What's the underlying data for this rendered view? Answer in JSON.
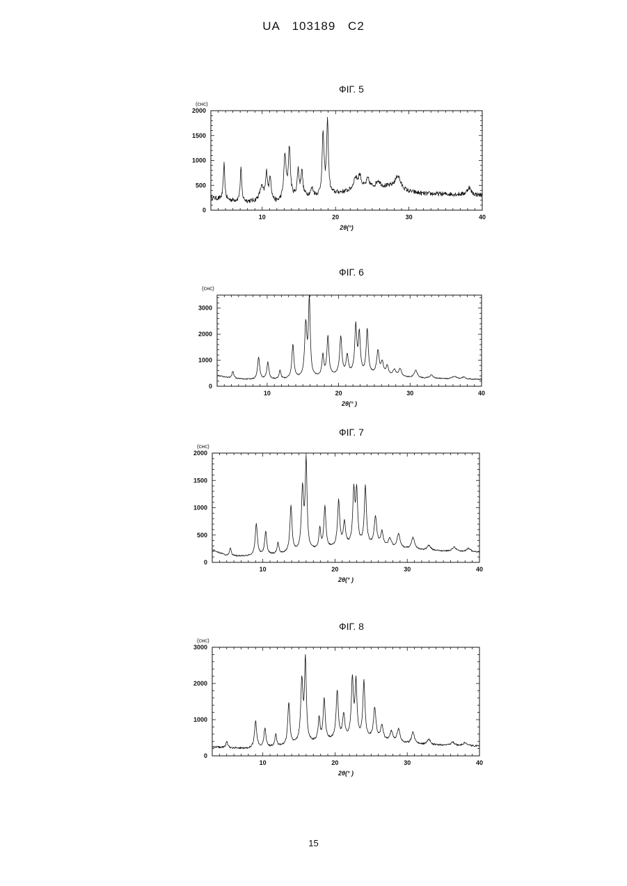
{
  "document": {
    "header": "UA 103189 C2",
    "page_number": "15"
  },
  "chart_data": [
    {
      "type": "line",
      "title": "ФІГ. 5",
      "ylabel": "(cнc)",
      "xlabel": "2θ(°)",
      "xlim": [
        3,
        40
      ],
      "ylim": [
        0,
        2000
      ],
      "xticks": [
        10,
        20,
        30,
        40
      ],
      "yticks": [
        0,
        500,
        1000,
        1500,
        2000
      ],
      "grid": false,
      "baseline": [
        [
          3,
          250
        ],
        [
          5,
          200
        ],
        [
          8,
          170
        ],
        [
          9,
          180
        ],
        [
          10,
          260
        ],
        [
          12,
          150
        ],
        [
          14,
          250
        ],
        [
          16,
          280
        ],
        [
          18,
          260
        ],
        [
          20,
          330
        ],
        [
          22,
          380
        ],
        [
          24,
          430
        ],
        [
          26,
          470
        ],
        [
          28,
          470
        ],
        [
          30,
          370
        ],
        [
          32,
          330
        ],
        [
          36,
          320
        ],
        [
          40,
          300
        ]
      ],
      "peaks": [
        [
          4.8,
          720,
          0.12
        ],
        [
          7.1,
          650,
          0.12
        ],
        [
          9.9,
          200,
          0.25
        ],
        [
          10.6,
          500,
          0.16
        ],
        [
          11.1,
          450,
          0.15
        ],
        [
          13.1,
          880,
          0.18
        ],
        [
          13.7,
          1000,
          0.16
        ],
        [
          14.9,
          520,
          0.15
        ],
        [
          15.4,
          500,
          0.15
        ],
        [
          16.8,
          150,
          0.2
        ],
        [
          18.3,
          1250,
          0.16
        ],
        [
          18.9,
          1500,
          0.14
        ],
        [
          22.7,
          230,
          0.3
        ],
        [
          23.3,
          260,
          0.25
        ],
        [
          24.4,
          180,
          0.25
        ],
        [
          25.8,
          120,
          0.3
        ],
        [
          28.5,
          250,
          0.4
        ],
        [
          38.2,
          150,
          0.3
        ]
      ],
      "noise": 45
    },
    {
      "type": "line",
      "title": "ФІГ. 6",
      "ylabel": "(cнc)",
      "xlabel": "2θ(° )",
      "xlim": [
        3,
        40
      ],
      "ylim": [
        0,
        3500
      ],
      "xticks": [
        10,
        20,
        30,
        40
      ],
      "yticks": [
        0,
        1000,
        2000,
        3000
      ],
      "grid": false,
      "baseline": [
        [
          3,
          420
        ],
        [
          5,
          300
        ],
        [
          8,
          250
        ],
        [
          12,
          260
        ],
        [
          16,
          320
        ],
        [
          20,
          420
        ],
        [
          22,
          470
        ],
        [
          24,
          460
        ],
        [
          26,
          420
        ],
        [
          28,
          350
        ],
        [
          32,
          300
        ],
        [
          36,
          280
        ],
        [
          40,
          260
        ]
      ],
      "peaks": [
        [
          5.2,
          280,
          0.15
        ],
        [
          8.8,
          850,
          0.18
        ],
        [
          10.1,
          650,
          0.17
        ],
        [
          11.8,
          330,
          0.15
        ],
        [
          13.6,
          1300,
          0.17
        ],
        [
          15.4,
          2000,
          0.18
        ],
        [
          15.9,
          2950,
          0.15
        ],
        [
          17.8,
          800,
          0.15
        ],
        [
          18.5,
          1500,
          0.17
        ],
        [
          20.3,
          1450,
          0.18
        ],
        [
          21.2,
          700,
          0.18
        ],
        [
          22.4,
          1800,
          0.17
        ],
        [
          22.9,
          1500,
          0.16
        ],
        [
          24.0,
          1700,
          0.17
        ],
        [
          25.5,
          900,
          0.2
        ],
        [
          26.1,
          450,
          0.2
        ],
        [
          26.8,
          350,
          0.2
        ],
        [
          27.8,
          250,
          0.25
        ],
        [
          28.6,
          300,
          0.25
        ],
        [
          30.8,
          300,
          0.25
        ],
        [
          33.0,
          120,
          0.3
        ],
        [
          36.2,
          100,
          0.3
        ],
        [
          37.5,
          80,
          0.3
        ]
      ],
      "noise": 20
    },
    {
      "type": "line",
      "title": "ФІГ. 7",
      "ylabel": "(cнc)",
      "xlabel": "2θ(° )",
      "xlim": [
        3,
        40
      ],
      "ylim": [
        0,
        2000
      ],
      "xticks": [
        10,
        20,
        30,
        40
      ],
      "yticks": [
        0,
        500,
        1000,
        1500,
        2000
      ],
      "grid": false,
      "baseline": [
        [
          3,
          230
        ],
        [
          5,
          120
        ],
        [
          8,
          110
        ],
        [
          12,
          140
        ],
        [
          16,
          200
        ],
        [
          20,
          260
        ],
        [
          22,
          300
        ],
        [
          24,
          310
        ],
        [
          26,
          300
        ],
        [
          28,
          260
        ],
        [
          32,
          220
        ],
        [
          36,
          200
        ],
        [
          40,
          190
        ]
      ],
      "peaks": [
        [
          5.5,
          140,
          0.15
        ],
        [
          9.1,
          580,
          0.18
        ],
        [
          10.4,
          430,
          0.17
        ],
        [
          12.1,
          210,
          0.15
        ],
        [
          13.9,
          860,
          0.17
        ],
        [
          15.5,
          1120,
          0.18
        ],
        [
          16.0,
          1620,
          0.15
        ],
        [
          17.9,
          360,
          0.15
        ],
        [
          18.6,
          760,
          0.17
        ],
        [
          20.5,
          840,
          0.18
        ],
        [
          21.3,
          420,
          0.18
        ],
        [
          22.6,
          960,
          0.17
        ],
        [
          23.0,
          930,
          0.16
        ],
        [
          24.2,
          1060,
          0.17
        ],
        [
          25.6,
          520,
          0.2
        ],
        [
          26.5,
          250,
          0.2
        ],
        [
          27.6,
          150,
          0.25
        ],
        [
          28.8,
          260,
          0.25
        ],
        [
          30.8,
          220,
          0.25
        ],
        [
          33.0,
          90,
          0.3
        ],
        [
          36.5,
          80,
          0.3
        ],
        [
          38.5,
          60,
          0.3
        ]
      ],
      "noise": 12
    },
    {
      "type": "line",
      "title": "ФІГ. 8",
      "ylabel": "(cнc)",
      "xlabel": "2θ(° )",
      "xlim": [
        3,
        40
      ],
      "ylim": [
        0,
        3000
      ],
      "xticks": [
        10,
        20,
        30,
        40
      ],
      "yticks": [
        0,
        1000,
        2000,
        3000
      ],
      "grid": false,
      "baseline": [
        [
          3,
          250
        ],
        [
          5,
          220
        ],
        [
          8,
          200
        ],
        [
          12,
          240
        ],
        [
          16,
          340
        ],
        [
          20,
          430
        ],
        [
          22,
          480
        ],
        [
          24,
          470
        ],
        [
          26,
          440
        ],
        [
          28,
          360
        ],
        [
          32,
          300
        ],
        [
          36,
          280
        ],
        [
          40,
          270
        ]
      ],
      "peaks": [
        [
          5.0,
          170,
          0.15
        ],
        [
          9.0,
          750,
          0.18
        ],
        [
          10.3,
          530,
          0.17
        ],
        [
          11.8,
          330,
          0.15
        ],
        [
          13.6,
          1180,
          0.17
        ],
        [
          15.4,
          1700,
          0.18
        ],
        [
          15.9,
          2250,
          0.15
        ],
        [
          17.8,
          650,
          0.15
        ],
        [
          18.5,
          1150,
          0.17
        ],
        [
          20.3,
          1330,
          0.18
        ],
        [
          21.2,
          650,
          0.18
        ],
        [
          22.4,
          1580,
          0.17
        ],
        [
          22.9,
          1500,
          0.16
        ],
        [
          24.0,
          1560,
          0.17
        ],
        [
          25.5,
          850,
          0.2
        ],
        [
          26.5,
          400,
          0.2
        ],
        [
          27.8,
          280,
          0.25
        ],
        [
          28.8,
          370,
          0.25
        ],
        [
          30.8,
          320,
          0.25
        ],
        [
          33.0,
          150,
          0.3
        ],
        [
          36.3,
          100,
          0.3
        ],
        [
          38.0,
          90,
          0.3
        ]
      ],
      "noise": 25
    }
  ]
}
